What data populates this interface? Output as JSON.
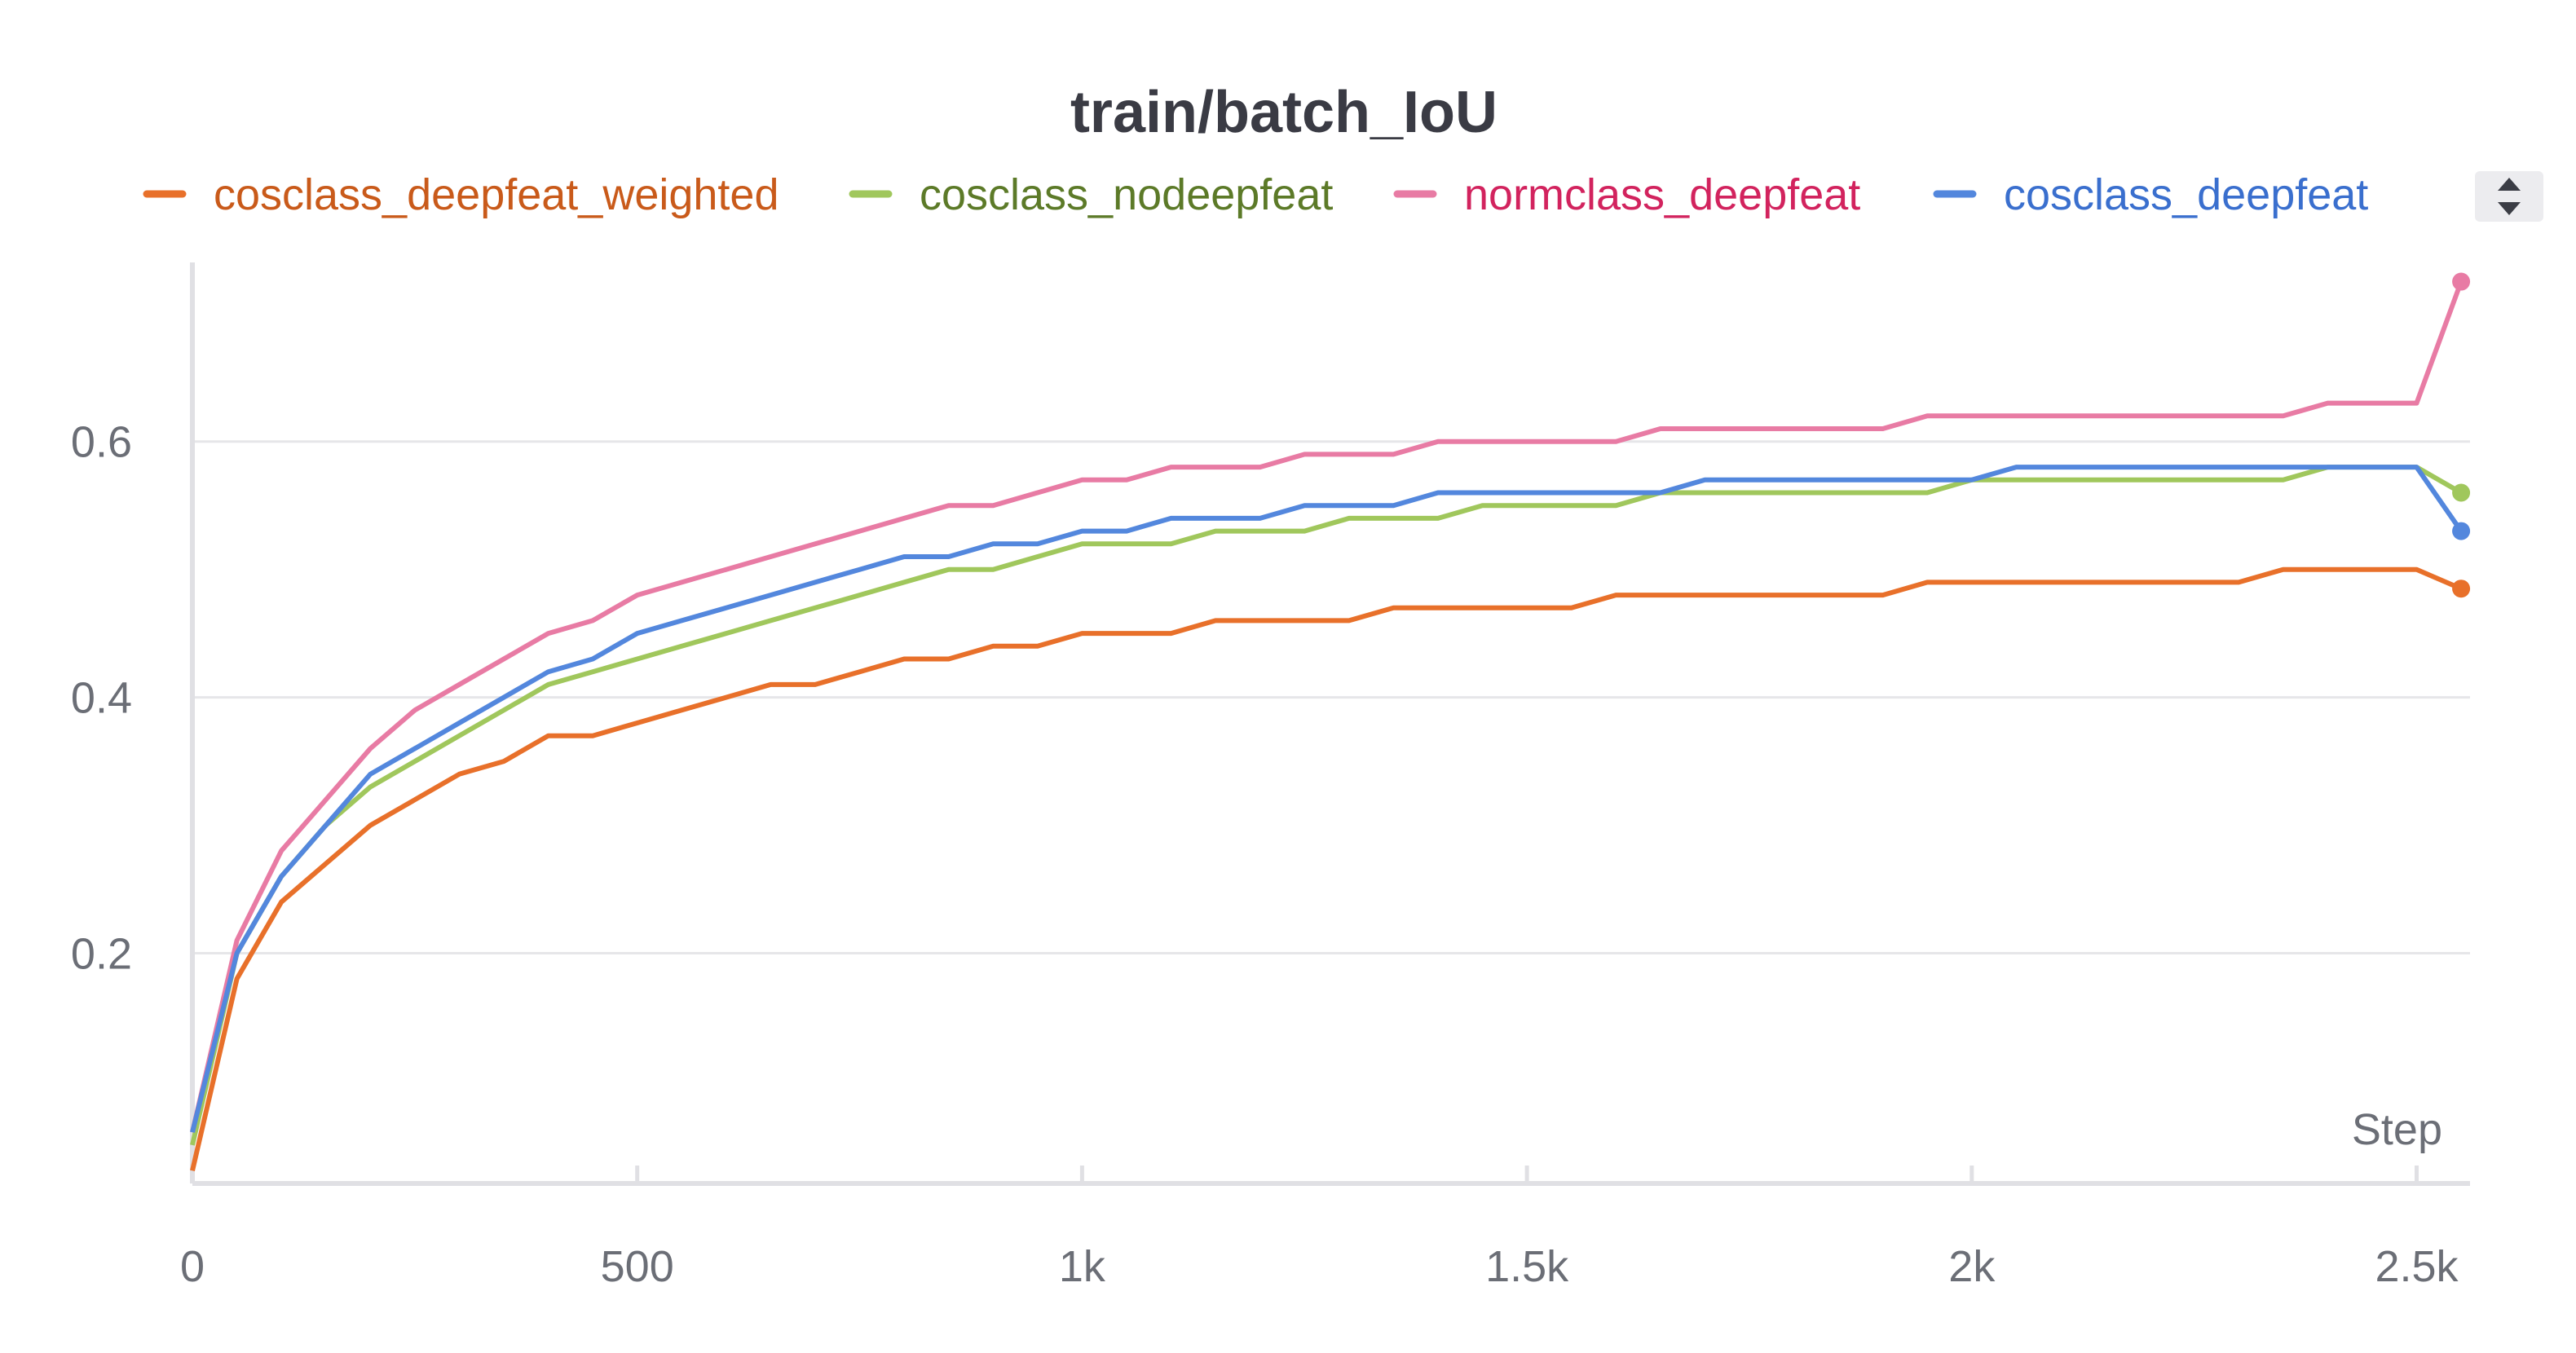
{
  "chart_data": {
    "type": "line",
    "title": "train/batch_IoU",
    "xlabel": "Step",
    "ylabel": "",
    "xlim": [
      0,
      2560
    ],
    "ylim": [
      0.02,
      0.74
    ],
    "x_ticks": [
      {
        "value": 0,
        "label": "0"
      },
      {
        "value": 500,
        "label": "500"
      },
      {
        "value": 1000,
        "label": "1k"
      },
      {
        "value": 1500,
        "label": "1.5k"
      },
      {
        "value": 2000,
        "label": "2k"
      },
      {
        "value": 2500,
        "label": "2.5k"
      }
    ],
    "y_ticks": [
      {
        "value": 0.2,
        "label": "0.2"
      },
      {
        "value": 0.4,
        "label": "0.4"
      },
      {
        "value": 0.6,
        "label": "0.6"
      }
    ],
    "grid": true,
    "legend_position": "top",
    "x": [
      0,
      50,
      100,
      150,
      200,
      250,
      300,
      350,
      400,
      450,
      500,
      550,
      600,
      650,
      700,
      750,
      800,
      850,
      900,
      950,
      1000,
      1050,
      1100,
      1150,
      1200,
      1250,
      1300,
      1350,
      1400,
      1450,
      1500,
      1550,
      1600,
      1650,
      1700,
      1750,
      1800,
      1850,
      1900,
      1950,
      2000,
      2050,
      2100,
      2150,
      2200,
      2250,
      2300,
      2350,
      2400,
      2450,
      2500,
      2550
    ],
    "series": [
      {
        "name": "cosclass_deepfeat_weighted",
        "color": "#e8702a",
        "text_color": "#c95a1a",
        "values": [
          0.03,
          0.18,
          0.24,
          0.27,
          0.3,
          0.32,
          0.34,
          0.35,
          0.37,
          0.37,
          0.38,
          0.39,
          0.4,
          0.41,
          0.41,
          0.42,
          0.43,
          0.43,
          0.44,
          0.44,
          0.45,
          0.45,
          0.45,
          0.46,
          0.46,
          0.46,
          0.46,
          0.47,
          0.47,
          0.47,
          0.47,
          0.47,
          0.48,
          0.48,
          0.48,
          0.48,
          0.48,
          0.48,
          0.48,
          0.49,
          0.49,
          0.49,
          0.49,
          0.49,
          0.49,
          0.49,
          0.49,
          0.5,
          0.5,
          0.5,
          0.5,
          0.485
        ]
      },
      {
        "name": "cosclass_nodeepfeat",
        "color": "#a0c75c",
        "text_color": "#5c7a28",
        "values": [
          0.05,
          0.2,
          0.26,
          0.3,
          0.33,
          0.35,
          0.37,
          0.39,
          0.41,
          0.42,
          0.43,
          0.44,
          0.45,
          0.46,
          0.47,
          0.48,
          0.49,
          0.5,
          0.5,
          0.51,
          0.52,
          0.52,
          0.52,
          0.53,
          0.53,
          0.53,
          0.54,
          0.54,
          0.54,
          0.55,
          0.55,
          0.55,
          0.55,
          0.56,
          0.56,
          0.56,
          0.56,
          0.56,
          0.56,
          0.56,
          0.57,
          0.57,
          0.57,
          0.57,
          0.57,
          0.57,
          0.57,
          0.57,
          0.58,
          0.58,
          0.58,
          0.56
        ]
      },
      {
        "name": "normclass_deepfeat",
        "color": "#e87ba4",
        "text_color": "#d2235e",
        "values": [
          0.06,
          0.21,
          0.28,
          0.32,
          0.36,
          0.39,
          0.41,
          0.43,
          0.45,
          0.46,
          0.48,
          0.49,
          0.5,
          0.51,
          0.52,
          0.53,
          0.54,
          0.55,
          0.55,
          0.56,
          0.57,
          0.57,
          0.58,
          0.58,
          0.58,
          0.59,
          0.59,
          0.59,
          0.6,
          0.6,
          0.6,
          0.6,
          0.6,
          0.61,
          0.61,
          0.61,
          0.61,
          0.61,
          0.61,
          0.62,
          0.62,
          0.62,
          0.62,
          0.62,
          0.62,
          0.62,
          0.62,
          0.62,
          0.63,
          0.63,
          0.63,
          0.725
        ]
      },
      {
        "name": "cosclass_deepfeat",
        "color": "#5387dd",
        "text_color": "#3a6fce",
        "values": [
          0.06,
          0.2,
          0.26,
          0.3,
          0.34,
          0.36,
          0.38,
          0.4,
          0.42,
          0.43,
          0.45,
          0.46,
          0.47,
          0.48,
          0.49,
          0.5,
          0.51,
          0.51,
          0.52,
          0.52,
          0.53,
          0.53,
          0.54,
          0.54,
          0.54,
          0.55,
          0.55,
          0.55,
          0.56,
          0.56,
          0.56,
          0.56,
          0.56,
          0.56,
          0.57,
          0.57,
          0.57,
          0.57,
          0.57,
          0.57,
          0.57,
          0.58,
          0.58,
          0.58,
          0.58,
          0.58,
          0.58,
          0.58,
          0.58,
          0.58,
          0.58,
          0.53
        ]
      }
    ]
  },
  "legend_scroll_icon": "up-down-arrows-icon"
}
